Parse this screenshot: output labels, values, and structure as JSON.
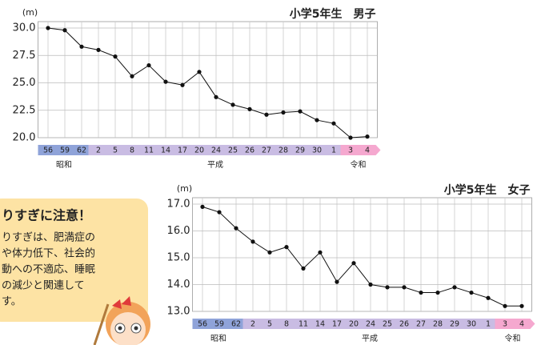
{
  "chart_data": [
    {
      "type": "line",
      "title": "小学5年生　男子",
      "y_unit": "(m)",
      "categories": [
        "56",
        "59",
        "62",
        "2",
        "5",
        "8",
        "11",
        "14",
        "17",
        "20",
        "24",
        "25",
        "26",
        "27",
        "28",
        "29",
        "30",
        "1",
        "3",
        "4"
      ],
      "series": [
        {
          "color": "#111111",
          "values": [
            30.0,
            29.8,
            28.3,
            28.0,
            27.4,
            25.6,
            26.6,
            25.1,
            24.8,
            26.0,
            23.7,
            23.0,
            22.6,
            22.1,
            22.3,
            22.4,
            21.6,
            21.3,
            20.0,
            20.1
          ]
        }
      ],
      "ylim": [
        20.0,
        30.0
      ],
      "yticks": [
        {
          "value": 20,
          "label": "20.0"
        },
        {
          "value": 22.5,
          "label": "22.5"
        },
        {
          "value": 25,
          "label": "25.0"
        },
        {
          "value": 27.5,
          "label": "27.5"
        },
        {
          "value": 30,
          "label": "30.0"
        }
      ],
      "grid": true,
      "eras": [
        {
          "name": "昭和",
          "color": "#8fa3d9",
          "span": 3
        },
        {
          "name": "平成",
          "color": "#c9bce3",
          "span": 15
        },
        {
          "name": "令和",
          "color": "#f5a8cf",
          "span": 2
        }
      ]
    },
    {
      "type": "line",
      "title": "小学5年生　女子",
      "y_unit": "(m)",
      "categories": [
        "56",
        "59",
        "62",
        "2",
        "5",
        "8",
        "11",
        "14",
        "17",
        "20",
        "24",
        "25",
        "26",
        "27",
        "28",
        "29",
        "30",
        "1",
        "3",
        "4"
      ],
      "series": [
        {
          "color": "#111111",
          "values": [
            16.9,
            16.7,
            16.1,
            15.6,
            15.2,
            15.4,
            14.6,
            15.2,
            14.1,
            14.8,
            14.0,
            13.9,
            13.9,
            13.7,
            13.7,
            13.9,
            13.7,
            13.5,
            13.2,
            13.2
          ]
        }
      ],
      "ylim": [
        13.0,
        17.0
      ],
      "yticks": [
        {
          "value": 13,
          "label": "13.0"
        },
        {
          "value": 14,
          "label": "14.0"
        },
        {
          "value": 15,
          "label": "15.0"
        },
        {
          "value": 16,
          "label": "16.0"
        },
        {
          "value": 17,
          "label": "17.0"
        }
      ],
      "grid": true,
      "eras": [
        {
          "name": "昭和",
          "color": "#8fa3d9",
          "span": 3
        },
        {
          "name": "平成",
          "color": "#c9bce3",
          "span": 15
        },
        {
          "name": "令和",
          "color": "#f5a8cf",
          "span": 2
        }
      ]
    }
  ],
  "note": {
    "title": "りすぎに注意！",
    "lines": [
      "りすぎは、肥満症の",
      "や体力低下、社会的",
      "動への不適応、睡眠",
      "の減少と関連して",
      "す。"
    ]
  }
}
